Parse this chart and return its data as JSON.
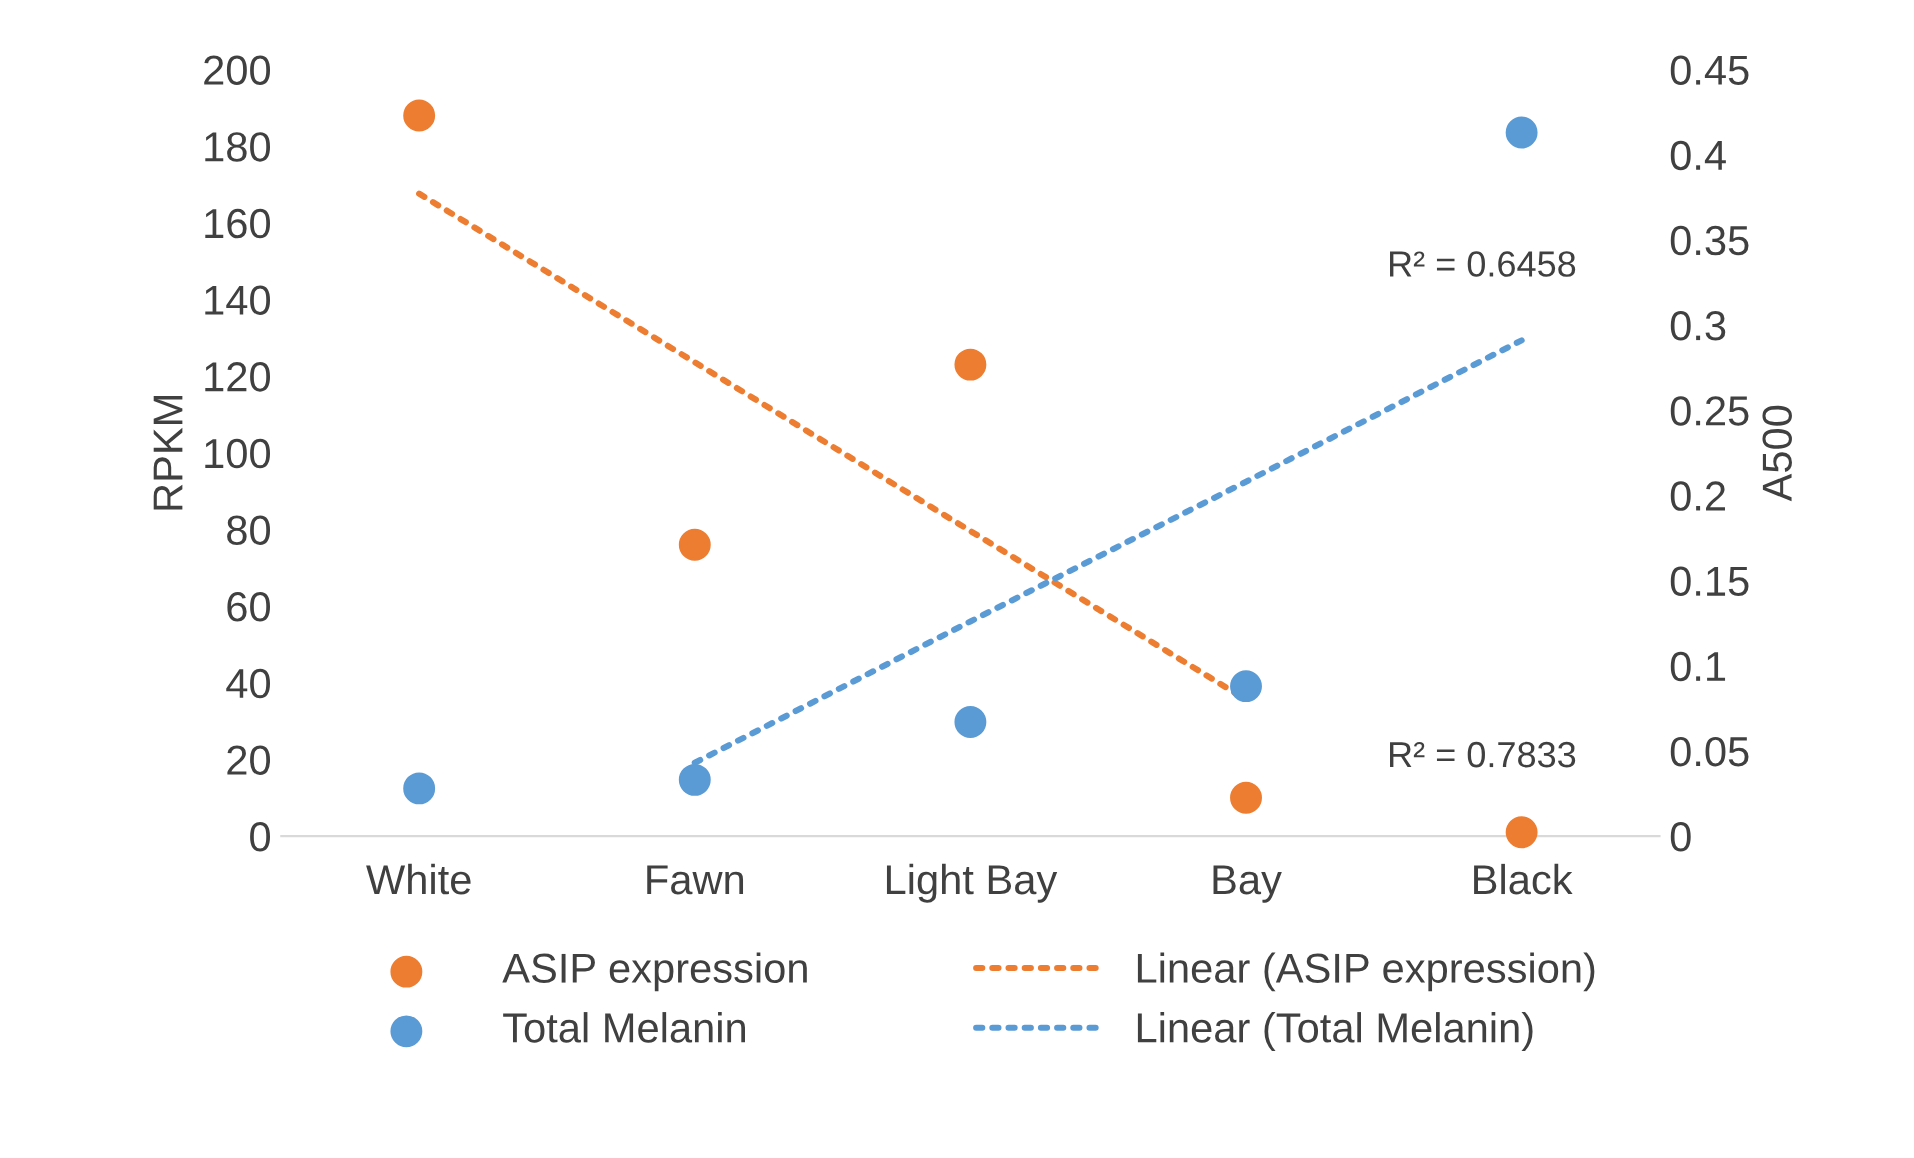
{
  "chart_data": {
    "type": "scatter",
    "categories": [
      "White",
      "Fawn",
      "Light Bay",
      "Bay",
      "Black"
    ],
    "ylabel": "RPKM",
    "y2label": "A500",
    "ylim": [
      0,
      200
    ],
    "yticks": [
      0,
      20,
      40,
      60,
      80,
      100,
      120,
      140,
      160,
      180,
      200
    ],
    "y2lim": [
      0,
      0.45
    ],
    "y2ticks": [
      {
        "value": 0,
        "label": "0"
      },
      0.05,
      0.1,
      0.15,
      0.2,
      0.25,
      0.3,
      0.35,
      0.4,
      0.45
    ],
    "marker": "circle",
    "grid": false,
    "legend": "bottom",
    "series": [
      {
        "name": "ASIP expression",
        "color": "#ed7d31",
        "values": [
          188,
          76,
          123,
          10,
          1
        ]
      },
      {
        "name": "Total Melanin",
        "axis": "y2",
        "color": "#5b9bd5",
        "values": [
          0.028,
          0.033,
          0.067,
          0.088,
          0.413
        ]
      },
      {
        "name": "Linear (ASIP expression)",
        "type": "line",
        "marker": "none",
        "line_style": "dotted",
        "color": "#ed7d31",
        "values": [
          167.6,
          123.6,
          79.6,
          35.6,
          null
        ]
      },
      {
        "name": "Linear (Total Melanin)",
        "type": "line",
        "marker": "none",
        "line_style": "dotted",
        "axis": "y2",
        "color": "#5b9bd5",
        "values": [
          null,
          0.043,
          0.126,
          0.208,
          0.291
        ]
      }
    ],
    "annotations": [
      "R² = 0.6458",
      "R² = 0.7833"
    ]
  }
}
